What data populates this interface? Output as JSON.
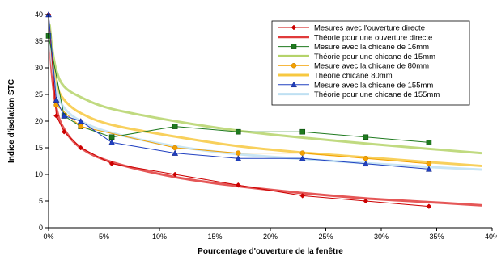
{
  "chart_data": {
    "type": "line",
    "title": "",
    "xlabel": "Pourcentage d'ouverture de la fenêtre",
    "ylabel": "Indice d'isolation STC",
    "xlim": [
      0,
      40
    ],
    "ylim": [
      0,
      40
    ],
    "x_ticks": [
      "0%",
      "5%",
      "10%",
      "15%",
      "20%",
      "25%",
      "30%",
      "35%",
      "40%"
    ],
    "y_ticks": [
      "0",
      "5",
      "10",
      "15",
      "20",
      "25",
      "30",
      "35",
      "40"
    ],
    "grid": false,
    "legend_position": "top-right",
    "series": [
      {
        "name": "Mesures avec l'ouverture directe",
        "kind": "measured",
        "marker": "diamond",
        "color": "#cc0000",
        "x": [
          0,
          0.7,
          1.4,
          2.9,
          5.7,
          11.4,
          17.1,
          22.9,
          28.6,
          34.3
        ],
        "y": [
          40,
          21,
          18,
          15,
          12,
          10,
          8,
          6,
          5,
          4
        ]
      },
      {
        "name": "Théorie pour une ouverture directe",
        "kind": "theory",
        "color": "#e03a3a",
        "x": [
          0.1,
          0.3,
          0.7,
          1.4,
          2.9,
          5.7,
          11.4,
          17.1,
          22.9,
          28.6,
          34.3,
          39
        ],
        "y": [
          36,
          29,
          22.5,
          18.5,
          15,
          12.3,
          9.5,
          7.8,
          6.5,
          5.5,
          4.8,
          4.2
        ]
      },
      {
        "name": "Mesure avec la chicane de 16mm",
        "kind": "measured",
        "marker": "square",
        "color": "#1f7a1f",
        "x": [
          0,
          1.4,
          2.9,
          5.7,
          11.4,
          17.1,
          22.9,
          28.6,
          34.3
        ],
        "y": [
          36,
          21,
          19,
          17,
          19,
          18,
          18,
          17,
          16
        ]
      },
      {
        "name": "Théorie pour une chicane de 15mm",
        "kind": "theory",
        "color": "#b5d36a",
        "x": [
          0.1,
          0.3,
          0.7,
          1.4,
          2.9,
          5.7,
          11.4,
          17.1,
          22.9,
          28.6,
          34.3,
          39
        ],
        "y": [
          38,
          34,
          29.5,
          26.5,
          24.5,
          22.3,
          20,
          18.2,
          16.9,
          15.8,
          14.8,
          14
        ]
      },
      {
        "name": "Mesure avec la chicane de 80mm",
        "kind": "measured",
        "marker": "circle",
        "color": "#f4a100",
        "x": [
          0.7,
          2.9,
          11.4,
          17.1,
          22.9,
          28.6,
          34.3
        ],
        "y": [
          23,
          19,
          15,
          14,
          14,
          13,
          12
        ]
      },
      {
        "name": "Théorie chicane 80mm",
        "kind": "theory",
        "color": "#f7c840",
        "x": [
          0.1,
          0.3,
          0.7,
          1.4,
          2.9,
          5.7,
          11.4,
          17.1,
          22.9,
          28.6,
          34.3,
          39
        ],
        "y": [
          37,
          32,
          27,
          24,
          21.5,
          19.3,
          17.1,
          15.3,
          14.1,
          13.2,
          12.3,
          11.6
        ]
      },
      {
        "name": "Mesure avec la chicane de 155mm",
        "kind": "measured",
        "marker": "triangle",
        "color": "#2040c0",
        "x": [
          0,
          0.7,
          1.4,
          2.9,
          5.7,
          11.4,
          17.1,
          22.9,
          28.6,
          34.3
        ],
        "y": [
          40,
          24,
          21,
          20,
          16,
          14,
          13,
          13,
          12,
          11
        ]
      },
      {
        "name": "Théorie pour une chicane de 155mm",
        "kind": "theory",
        "color": "#bfe0f2",
        "x": [
          0.1,
          0.3,
          0.7,
          1.4,
          2.9,
          5.7,
          11.4,
          17.1,
          22.9,
          28.6,
          34.3,
          39
        ],
        "y": [
          36,
          31,
          26,
          22.5,
          20,
          17.8,
          15.3,
          13.8,
          12.9,
          12.1,
          11.4,
          10.9
        ]
      }
    ]
  }
}
